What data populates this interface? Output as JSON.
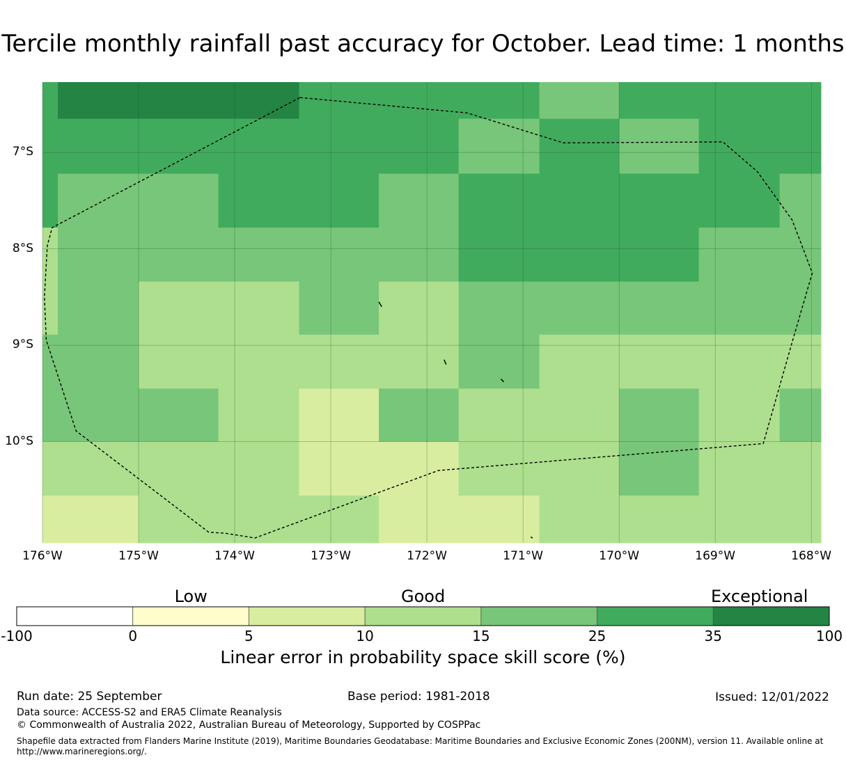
{
  "title": "Tercile monthly rainfall past accuracy for October. Lead time: 1 months",
  "map": {
    "lon_range": [
      -176.0,
      -167.9
    ],
    "lat_range": [
      -6.27,
      -11.05
    ],
    "y_ticks": [
      {
        "lat": -7,
        "label": "7°S"
      },
      {
        "lat": -8,
        "label": "8°S"
      },
      {
        "lat": -9,
        "label": "9°S"
      },
      {
        "lat": -10,
        "label": "10°S"
      }
    ],
    "x_ticks": [
      {
        "lon": -176,
        "label": "176°W"
      },
      {
        "lon": -175,
        "label": "175°W"
      },
      {
        "lon": -174,
        "label": "174°W"
      },
      {
        "lon": -173,
        "label": "173°W"
      },
      {
        "lon": -172,
        "label": "172°W"
      },
      {
        "lon": -171,
        "label": "171°W"
      },
      {
        "lon": -170,
        "label": "170°W"
      },
      {
        "lon": -169,
        "label": "169°W"
      },
      {
        "lon": -168,
        "label": "168°W"
      }
    ],
    "cell_lon_edges": [
      -176.0,
      -175.84,
      -175.0,
      -174.17,
      -173.33,
      -172.5,
      -171.67,
      -170.83,
      -170.0,
      -169.17,
      -168.33,
      -167.9
    ],
    "cell_lat_edges": [
      -6.27,
      -6.65,
      -7.22,
      -7.78,
      -8.34,
      -8.89,
      -9.45,
      -10.0,
      -10.56,
      -11.05
    ],
    "cell_categories": [
      [
        5,
        6,
        6,
        6,
        5,
        5,
        5,
        4,
        5,
        5,
        5
      ],
      [
        5,
        5,
        5,
        5,
        5,
        5,
        4,
        5,
        4,
        5,
        5
      ],
      [
        5,
        4,
        4,
        5,
        5,
        4,
        5,
        5,
        5,
        5,
        4
      ],
      [
        3,
        4,
        4,
        4,
        4,
        4,
        5,
        5,
        5,
        4,
        4
      ],
      [
        3,
        4,
        3,
        3,
        4,
        3,
        4,
        4,
        4,
        4,
        4
      ],
      [
        4,
        4,
        3,
        3,
        3,
        3,
        4,
        3,
        3,
        3,
        3
      ],
      [
        4,
        4,
        4,
        3,
        2,
        4,
        3,
        3,
        4,
        3,
        4
      ],
      [
        3,
        3,
        3,
        3,
        2,
        2,
        3,
        3,
        4,
        3,
        3
      ],
      [
        2,
        2,
        3,
        3,
        3,
        2,
        2,
        3,
        3,
        3,
        3
      ]
    ],
    "eez_boundary": [
      [
        -173.32,
        -6.43
      ],
      [
        -171.58,
        -6.59
      ],
      [
        -170.58,
        -6.9
      ],
      [
        -168.92,
        -6.89
      ],
      [
        -168.56,
        -7.2
      ],
      [
        -168.2,
        -7.7
      ],
      [
        -167.99,
        -8.25
      ],
      [
        -168.2,
        -8.97
      ],
      [
        -168.5,
        -10.02
      ],
      [
        -171.88,
        -10.3
      ],
      [
        -173.79,
        -11.0
      ],
      [
        -174.1,
        -10.95
      ],
      [
        -174.27,
        -10.94
      ],
      [
        -175.65,
        -9.89
      ],
      [
        -175.96,
        -8.95
      ],
      [
        -175.98,
        -8.5
      ],
      [
        -175.95,
        -7.97
      ],
      [
        -175.9,
        -7.78
      ],
      [
        -173.32,
        -6.43
      ]
    ],
    "islands": [
      [
        [
          -172.5,
          -8.55
        ],
        [
          -172.47,
          -8.6
        ]
      ],
      [
        [
          -171.82,
          -9.15
        ],
        [
          -171.8,
          -9.2
        ]
      ],
      [
        [
          -171.23,
          -9.35
        ],
        [
          -171.2,
          -9.38
        ]
      ],
      [
        [
          -170.92,
          -10.99
        ],
        [
          -170.9,
          -11.0
        ]
      ]
    ],
    "grid_color": "#1f4f2a"
  },
  "colorbar": {
    "category_labels": [
      {
        "label": "Low",
        "at": 1.5
      },
      {
        "label": "Good",
        "at": 3.5
      },
      {
        "label": "Exceptional",
        "at": 6.4
      }
    ],
    "ticks": [
      "-100",
      "0",
      "5",
      "10",
      "15",
      "25",
      "35",
      "100"
    ],
    "colors": [
      "#ffffff",
      "#fefdcc",
      "#d9edA0",
      "#addf8e",
      "#78c679",
      "#41ab5d",
      "#238443"
    ],
    "label": "Linear error in probability space skill score (%)"
  },
  "footer": {
    "run_date": "Run date: 25 September",
    "base_period": "Base period: 1981-2018",
    "issued": "Issued: 12/01/2022",
    "data_source": "Data source: ACCESS-S2 and ERA5 Climate Reanalysis",
    "copyright": "© Commonwealth of Australia 2022, Australian Bureau of Meteorology, Supported by COSPPac",
    "shapefile": "Shapefile data extracted from Flanders Marine Institute (2019), Maritime Boundaries Geodatabase: Maritime Boundaries and Exclusive Economic Zones (200NM), version 11. Available online at http://www.marineregions.org/."
  }
}
